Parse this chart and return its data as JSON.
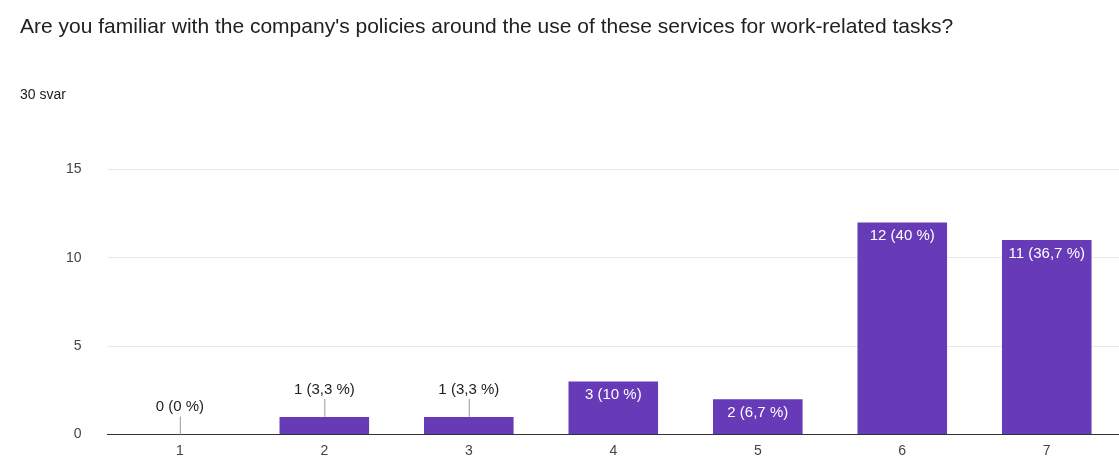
{
  "chart_data": {
    "type": "bar",
    "title": "Are you familiar with the company's policies around the use of these services for work-related tasks?",
    "subtitle": "30 svar",
    "categories": [
      "1",
      "2",
      "3",
      "4",
      "5",
      "6",
      "7"
    ],
    "values": [
      0,
      1,
      1,
      3,
      2,
      12,
      11
    ],
    "value_labels": [
      "0 (0 %)",
      "1 (3,3 %)",
      "1 (3,3 %)",
      "3 (10 %)",
      "2 (6,7 %)",
      "12 (40 %)",
      "11 (36,7 %)"
    ],
    "color": "#673ab7",
    "ylim": [
      0,
      15
    ],
    "yticks": [
      0,
      5,
      10,
      15
    ],
    "grid": "y",
    "legend": false
  }
}
